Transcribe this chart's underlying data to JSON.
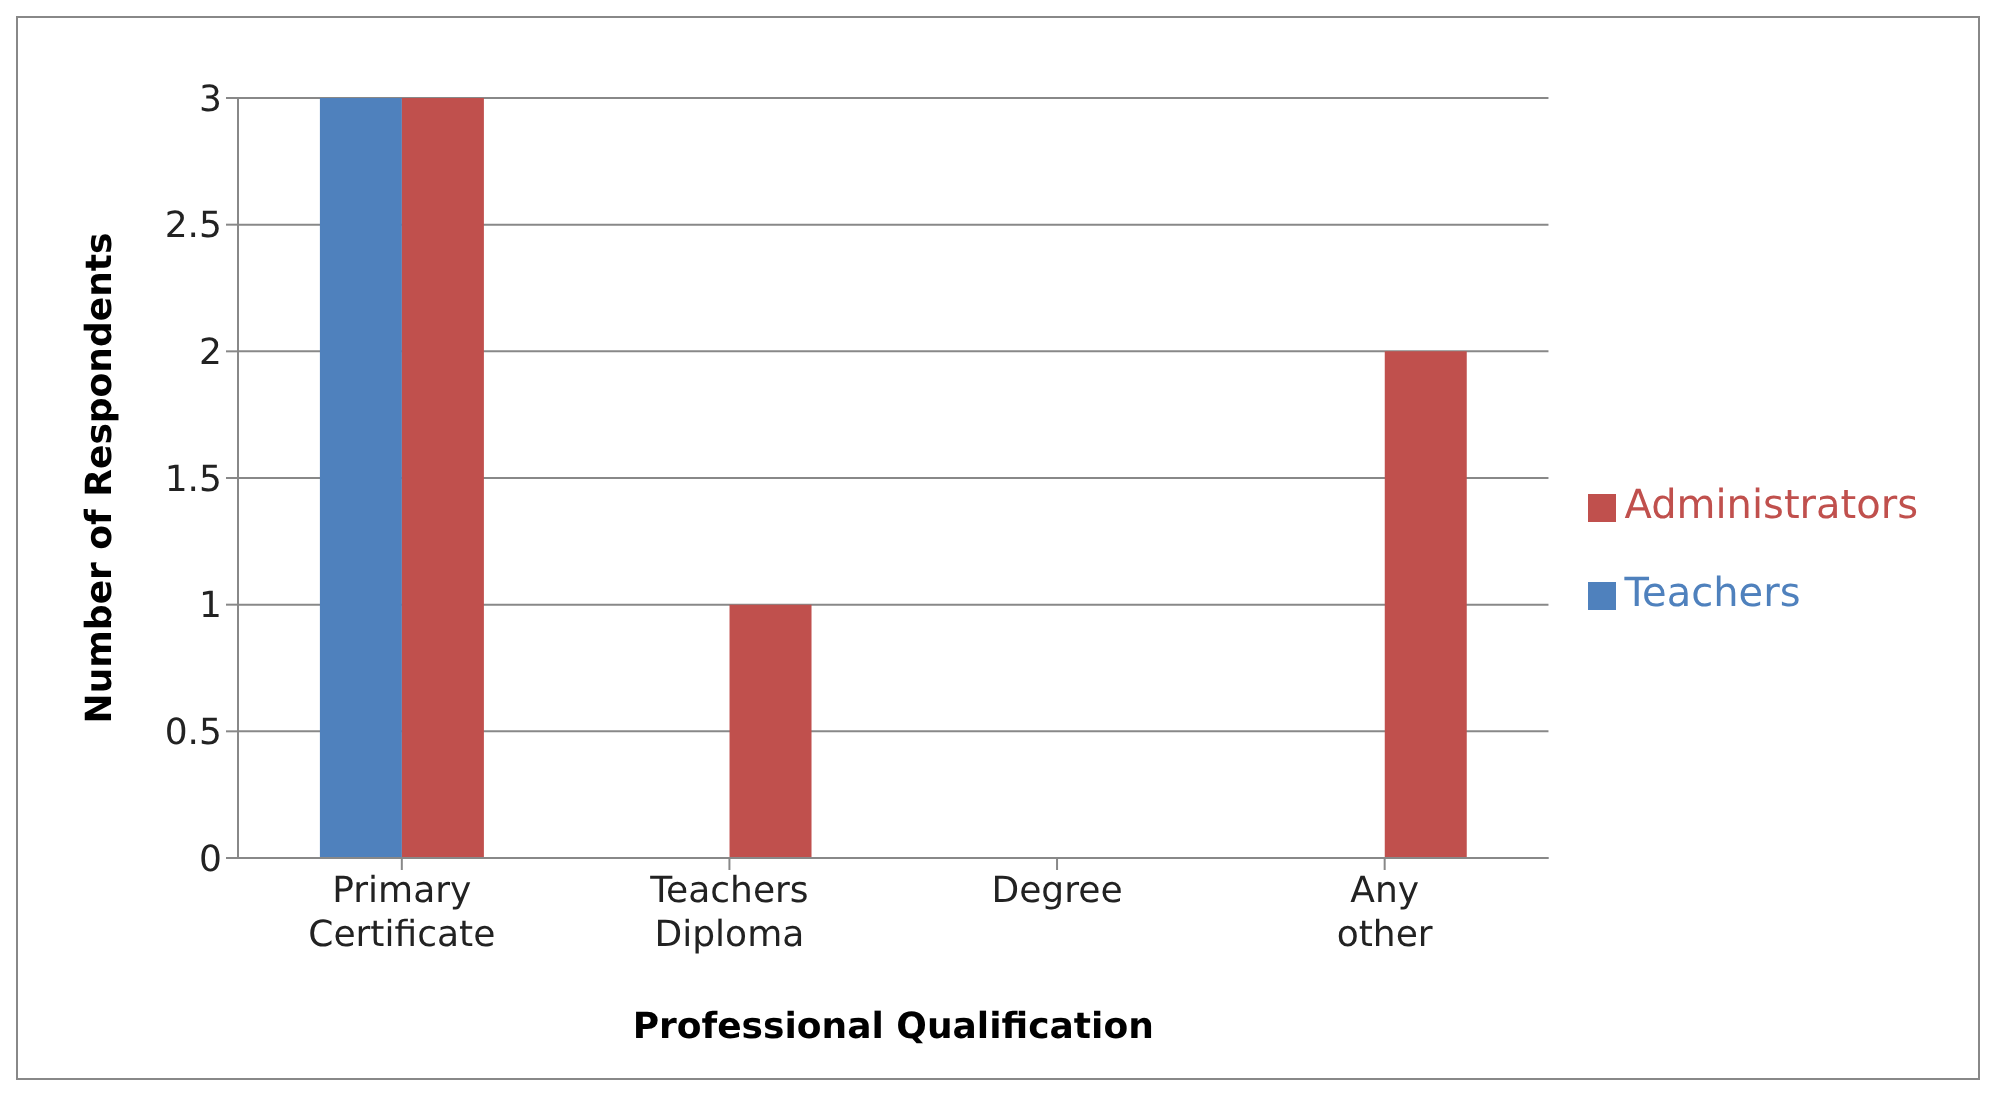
{
  "chart_data": {
    "type": "bar",
    "xlabel": "Professional Qualification",
    "ylabel": "Number of Respondents",
    "categories": [
      "Primary Certificate",
      "Teachers Diploma",
      "Degree",
      "Any other"
    ],
    "series": [
      {
        "name": "Teachers",
        "color": "#4f81bd",
        "values": [
          3,
          0,
          0,
          0
        ]
      },
      {
        "name": "Administrators",
        "color": "#c0504d",
        "values": [
          3,
          1,
          0,
          2
        ]
      }
    ],
    "ylim": [
      0,
      3
    ],
    "yticks": [
      0,
      0.5,
      1,
      1.5,
      2,
      2.5,
      3
    ],
    "grid": "y",
    "legend": "right"
  }
}
